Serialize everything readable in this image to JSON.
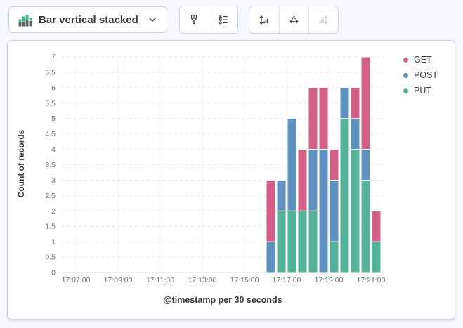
{
  "toolbar": {
    "chart_type_label": "Bar vertical stacked",
    "icons": {
      "chart_type": "bar-vertical-stacked-icon",
      "group1": [
        "brush-icon",
        "legend-list-icon"
      ],
      "group2": [
        "left-axis-icon",
        "bottom-axis-icon",
        "right-axis-icon"
      ],
      "right_axis_disabled": true
    }
  },
  "colors": {
    "get": "#d36086",
    "post": "#6092c0",
    "put": "#54b399",
    "text_dark": "#343741",
    "text_muted": "#69707d",
    "panel_border": "#cbd3e0",
    "background": "#f7f8fc"
  },
  "chart_data": {
    "type": "bar",
    "stacked": true,
    "orientation": "vertical",
    "categories": [
      "17:16:00",
      "17:16:30",
      "17:17:00",
      "17:17:30",
      "17:18:00",
      "17:18:30",
      "17:19:00",
      "17:19:30",
      "17:20:00",
      "17:20:30",
      "17:21:00"
    ],
    "bucket_interval_seconds": 30,
    "series": [
      {
        "name": "GET",
        "color": "#d36086",
        "values": [
          2,
          0,
          0,
          2,
          2,
          2,
          1,
          0,
          1,
          3,
          1
        ]
      },
      {
        "name": "POST",
        "color": "#6092c0",
        "values": [
          1,
          1,
          3,
          0,
          2,
          4,
          2,
          1,
          1,
          1,
          0
        ]
      },
      {
        "name": "PUT",
        "color": "#54b399",
        "values": [
          0,
          2,
          2,
          2,
          2,
          0,
          1,
          5,
          4,
          3,
          1
        ]
      }
    ],
    "stack_bottom_to_top": [
      "PUT",
      "POST",
      "GET"
    ],
    "totals": [
      3,
      3,
      5,
      4,
      6,
      6,
      4,
      6,
      6,
      7,
      2
    ],
    "xlabel": "@timestamp per 30 seconds",
    "ylabel": "Count of records",
    "x_ticks": [
      "17:07:00",
      "17:09:00",
      "17:11:00",
      "17:13:00",
      "17:15:00",
      "17:17:00",
      "17:19:00",
      "17:21:00"
    ],
    "ylim": [
      0,
      7
    ],
    "y_tick_step": 0.5,
    "grid": true,
    "legend_position": "right"
  }
}
